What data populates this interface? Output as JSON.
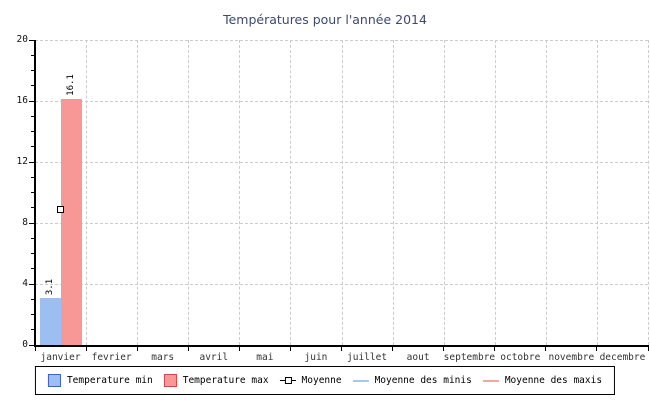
{
  "title": {
    "text": "Températures pour l'année 2014",
    "color": "#3e4a6e"
  },
  "chart_data": {
    "type": "bar",
    "title": "Températures pour l'année 2014",
    "categories": [
      "janvier",
      "fevrier",
      "mars",
      "avril",
      "mai",
      "juin",
      "juillet",
      "aout",
      "septembre",
      "octobre",
      "novembre",
      "decembre"
    ],
    "ylim": [
      0,
      20
    ],
    "y_ticks": [
      0,
      4,
      8,
      12,
      16,
      20
    ],
    "y_minor_step": 1,
    "grid": true,
    "legend_position": "bottom",
    "series": [
      {
        "name": "Temperature min",
        "type": "bar",
        "color": "#9dbef0",
        "values": [
          3.1,
          null,
          null,
          null,
          null,
          null,
          null,
          null,
          null,
          null,
          null,
          null
        ],
        "value_labels": [
          "3.1",
          null,
          null,
          null,
          null,
          null,
          null,
          null,
          null,
          null,
          null,
          null
        ]
      },
      {
        "name": "Temperature max",
        "type": "bar",
        "color": "#f89896",
        "values": [
          16.1,
          null,
          null,
          null,
          null,
          null,
          null,
          null,
          null,
          null,
          null,
          null
        ],
        "value_labels": [
          "16.1",
          null,
          null,
          null,
          null,
          null,
          null,
          null,
          null,
          null,
          null,
          null
        ]
      },
      {
        "name": "Moyenne",
        "type": "point",
        "marker": "open-square",
        "color": "#000000",
        "values": [
          8.9,
          null,
          null,
          null,
          null,
          null,
          null,
          null,
          null,
          null,
          null,
          null
        ]
      },
      {
        "name": "Moyenne des minis",
        "type": "line",
        "color": "#a6c8f0",
        "values": []
      },
      {
        "name": "Moyenne des maxis",
        "type": "line",
        "color": "#f6a5a3",
        "values": []
      }
    ]
  },
  "legend": {
    "items": [
      {
        "label": "Temperature min",
        "swatch": "rect",
        "fill": "#9dbef0",
        "border": "#3e62c4"
      },
      {
        "label": "Temperature max",
        "swatch": "rect",
        "fill": "#f89896",
        "border": "#cf4a4a"
      },
      {
        "label": "Moyenne",
        "swatch": "marker-line",
        "color": "#000000"
      },
      {
        "label": "Moyenne des minis",
        "swatch": "line",
        "color": "#a6c8f0"
      },
      {
        "label": "Moyenne des maxis",
        "swatch": "line",
        "color": "#f6a5a3"
      }
    ]
  },
  "colors": {
    "grid": "#cccccc",
    "axis": "#000000",
    "tick_label": "#111111",
    "month_label": "#333333"
  }
}
